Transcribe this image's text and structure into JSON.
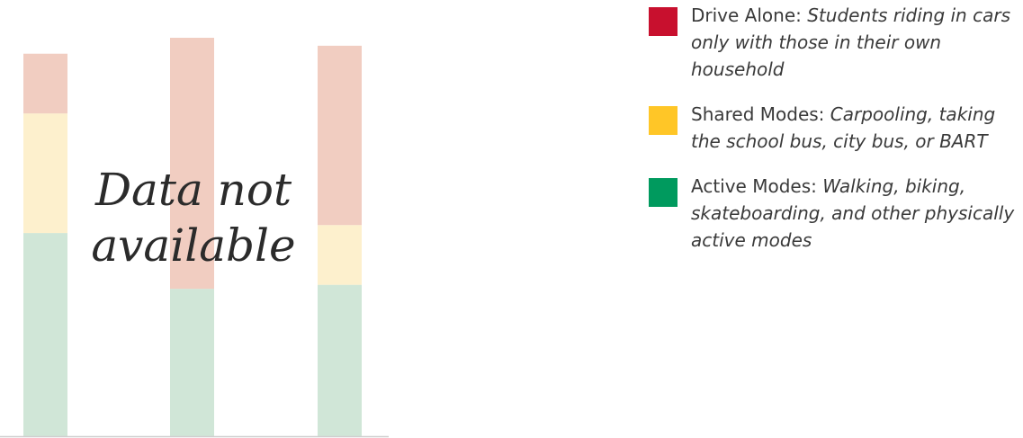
{
  "chart_data": {
    "type": "bar",
    "stacked": true,
    "categories": [
      "",
      "",
      ""
    ],
    "ylim": [
      0,
      100
    ],
    "grid": false,
    "legend_position": "right",
    "series": [
      {
        "name": "Active Modes",
        "color": "#d0e6d7",
        "values": [
          51,
          37,
          38
        ]
      },
      {
        "name": "Shared Modes",
        "color": "#fdf0cd",
        "values": [
          30,
          0,
          15
        ]
      },
      {
        "name": "Drive Alone",
        "color": "#f1cdc1",
        "values": [
          15,
          63,
          45
        ]
      }
    ],
    "overlay_text": [
      "Data not",
      "available"
    ],
    "legend": [
      {
        "label": "Drive Alone: ",
        "description": "Students riding in cars only with those in their own household",
        "color": "#c8102e"
      },
      {
        "label": "Shared Modes: ",
        "description": "Carpooling, taking the school bus, city bus, or BART",
        "color": "#ffc627"
      },
      {
        "label": "Active Modes: ",
        "description": "Walking, biking, skateboarding, and other physically active modes",
        "color": "#009a5e"
      }
    ]
  }
}
